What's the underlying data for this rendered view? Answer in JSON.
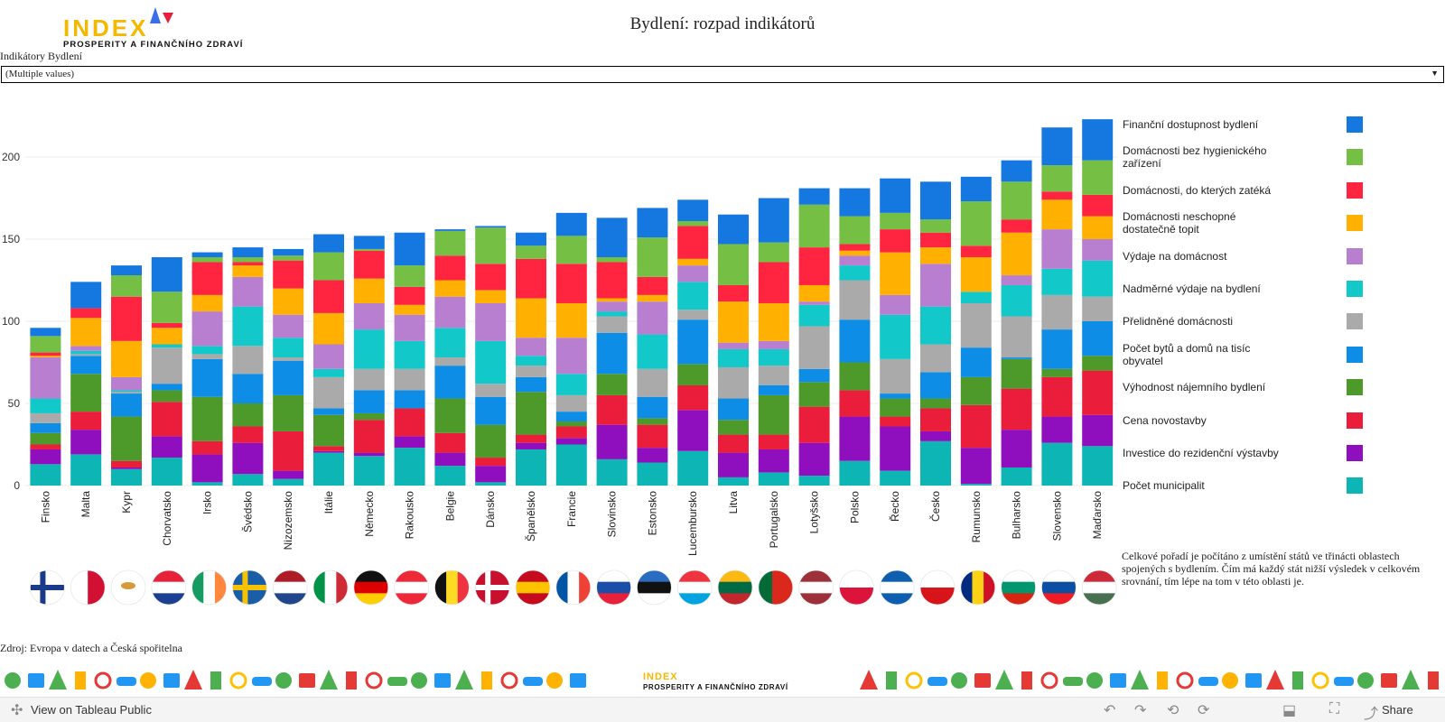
{
  "logo": {
    "main": "INDEX",
    "sub": "PROSPERITY A FINANČNÍHO ZDRAVÍ"
  },
  "title": "Bydlení: rozpad indikátorů",
  "filter": {
    "label": "Indikátory Bydlení",
    "value": "(Multiple values)"
  },
  "chart_data": {
    "type": "bar",
    "stacked": true,
    "title": "",
    "xlabel": "",
    "ylabel": "",
    "ylim": [
      0,
      230
    ],
    "yticks": [
      0,
      50,
      100,
      150,
      200
    ],
    "grid": true,
    "legend_position": "right",
    "categories": [
      "Finsko",
      "Malta",
      "Kypr",
      "Chorvatsko",
      "Irsko",
      "Švédsko",
      "Nizozemsko",
      "Itálie",
      "Německo",
      "Rakousko",
      "Belgie",
      "Dánsko",
      "Španělsko",
      "Francie",
      "Slovinsko",
      "Estonsko",
      "Lucembursko",
      "Litva",
      "Portugalsko",
      "Lotyšsko",
      "Polsko",
      "Řecko",
      "Česko",
      "Rumunsko",
      "Bulharsko",
      "Slovensko",
      "Maďarsko"
    ],
    "series": [
      {
        "name": "Počet municipalit",
        "color": "#0db5b5",
        "values": [
          13,
          19,
          10,
          17,
          2,
          7,
          4,
          20,
          18,
          23,
          12,
          2,
          22,
          25,
          16,
          14,
          21,
          5,
          8,
          6,
          15,
          9,
          27,
          1,
          11,
          26,
          24
        ]
      },
      {
        "name": "Investice do rezidenční výstavby",
        "color": "#8f0fbf",
        "values": [
          9,
          15,
          1,
          13,
          17,
          19,
          5,
          1,
          2,
          7,
          8,
          10,
          4,
          4,
          21,
          9,
          25,
          15,
          14,
          20,
          27,
          27,
          6,
          22,
          23,
          16,
          19
        ]
      },
      {
        "name": "Cena novostavby",
        "color": "#ea1d3a",
        "values": [
          3,
          11,
          4,
          21,
          8,
          10,
          24,
          3,
          20,
          17,
          12,
          5,
          5,
          7,
          18,
          14,
          15,
          11,
          9,
          22,
          16,
          6,
          14,
          26,
          25,
          24,
          27
        ]
      },
      {
        "name": "Výhodnost nájemního bydlení",
        "color": "#4d9a2a",
        "values": [
          7,
          23,
          27,
          7,
          27,
          14,
          22,
          19,
          4,
          0,
          21,
          20,
          26,
          3,
          13,
          4,
          13,
          9,
          24,
          15,
          17,
          11,
          6,
          17,
          18,
          5,
          9
        ]
      },
      {
        "name": "Počet bytů a domů na tisíc obyvatel",
        "color": "#0d8de6",
        "values": [
          6,
          11,
          14,
          4,
          23,
          18,
          21,
          4,
          14,
          11,
          20,
          17,
          9,
          6,
          25,
          13,
          27,
          13,
          6,
          8,
          26,
          3,
          16,
          18,
          1,
          24,
          21
        ]
      },
      {
        "name": "Přelidněné domácnosti",
        "color": "#aaaaaa",
        "values": [
          6,
          1,
          1,
          22,
          3,
          17,
          2,
          19,
          13,
          13,
          5,
          8,
          7,
          10,
          10,
          17,
          6,
          19,
          12,
          26,
          24,
          21,
          17,
          27,
          25,
          21,
          15
        ]
      },
      {
        "name": "Nadměrné výdaje na bydlení",
        "color": "#12c8c8",
        "values": [
          9,
          2,
          1,
          2,
          5,
          24,
          12,
          5,
          24,
          17,
          18,
          26,
          6,
          13,
          3,
          21,
          17,
          11,
          10,
          13,
          9,
          27,
          23,
          7,
          19,
          16,
          22
        ]
      },
      {
        "name": "Výdaje na domácnost",
        "color": "#b87fd1",
        "values": [
          25,
          3,
          8,
          0,
          21,
          18,
          14,
          15,
          16,
          16,
          19,
          23,
          11,
          22,
          6,
          20,
          10,
          4,
          5,
          2,
          6,
          12,
          26,
          0,
          6,
          24,
          13
        ]
      },
      {
        "name": "Domácnosti neschopné dostatečně topit",
        "color": "#ffb000",
        "values": [
          1,
          17,
          22,
          10,
          10,
          7,
          16,
          19,
          15,
          6,
          10,
          8,
          24,
          21,
          2,
          4,
          4,
          25,
          23,
          10,
          3,
          26,
          10,
          21,
          26,
          18,
          14
        ]
      },
      {
        "name": "Domácnosti, do kterých zatéká",
        "color": "#ff2541",
        "values": [
          2,
          6,
          27,
          3,
          20,
          2,
          17,
          20,
          17,
          11,
          15,
          16,
          24,
          24,
          22,
          11,
          20,
          10,
          25,
          23,
          4,
          14,
          9,
          7,
          8,
          5,
          13
        ]
      },
      {
        "name": "Domácnosti bez hygienického zařízení",
        "color": "#74bf44",
        "values": [
          10,
          0,
          13,
          19,
          3,
          3,
          3,
          17,
          1,
          13,
          15,
          22,
          8,
          17,
          3,
          24,
          3,
          25,
          12,
          26,
          17,
          10,
          8,
          27,
          23,
          16,
          21
        ]
      },
      {
        "name": "Finanční dostupnost bydlení",
        "color": "#1478e0",
        "values": [
          5,
          16,
          6,
          21,
          3,
          6,
          4,
          11,
          8,
          20,
          1,
          1,
          8,
          14,
          24,
          18,
          13,
          18,
          27,
          10,
          17,
          21,
          23,
          15,
          13,
          23,
          25
        ]
      }
    ]
  },
  "legend_order": [
    "Finanční dostupnost bydlení",
    "Domácnosti bez hygienického zařízení",
    "Domácnosti, do kterých zatéká",
    "Domácnosti neschopné dostatečně topit",
    "Výdaje na domácnost",
    "Nadměrné výdaje na bydlení",
    "Přelidněné domácnosti",
    "Počet bytů a domů na tisíc obyvatel",
    "Výhodnost nájemního bydlení",
    "Cena novostavby",
    "Investice do rezidenční výstavby",
    "Počet municipalit"
  ],
  "flags": [
    "finland-flag-icon",
    "malta-flag-icon",
    "cyprus-flag-icon",
    "croatia-flag-icon",
    "ireland-flag-icon",
    "sweden-flag-icon",
    "netherlands-flag-icon",
    "italy-flag-icon",
    "germany-flag-icon",
    "austria-flag-icon",
    "belgium-flag-icon",
    "denmark-flag-icon",
    "spain-flag-icon",
    "france-flag-icon",
    "slovenia-flag-icon",
    "estonia-flag-icon",
    "luxembourg-flag-icon",
    "lithuania-flag-icon",
    "portugal-flag-icon",
    "latvia-flag-icon",
    "poland-flag-icon",
    "greece-flag-icon",
    "czechia-flag-icon",
    "romania-flag-icon",
    "bulgaria-flag-icon",
    "slovakia-flag-icon",
    "hungary-flag-icon"
  ],
  "note": "Celkové pořadí je počítáno z umístění států ve třinácti oblastech spojených s bydlením. Čím má každý stát nižší výsledek v celkovém srovnání, tím lépe na tom v této oblasti je.",
  "source": "Zdroj: Evropa v datech a Česká spořitelna",
  "footer_logo": {
    "main": "INDEX",
    "sub": "PROSPERITY A FINANČNÍHO ZDRAVÍ"
  },
  "toolbar": {
    "view_label": "View on Tableau Public",
    "share_label": "Share"
  }
}
